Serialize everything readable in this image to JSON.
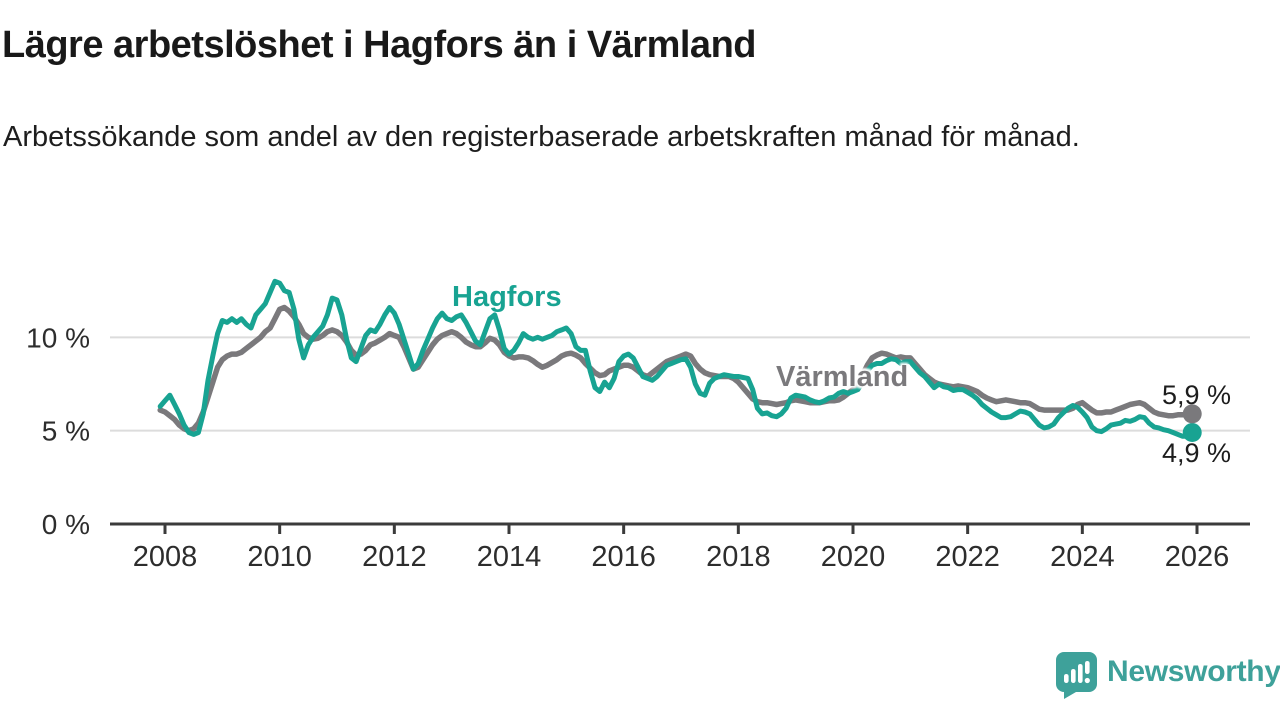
{
  "header": {
    "title": "Lägre arbetslöshet i Hagfors än i Värmland",
    "subtitle": "Arbetssökande som andel av den registerbaserade arbetskraften månad för månad."
  },
  "colors": {
    "hagfors_line": "#18a392",
    "varmland_line": "#7a797c",
    "axis": "#3b3b3b",
    "gridline": "#dcdcdc",
    "tick_label": "#2d2d2d",
    "text": "#1e1e1e",
    "brand_teal": "#3ea19a"
  },
  "chart_data": {
    "type": "line",
    "title": "Lägre arbetslöshet i Hagfors än i Värmland",
    "subtitle": "Arbetssökande som andel av den registerbaserade arbetskraften månad för månad.",
    "unit": "%",
    "x_start_year": 2007.9167,
    "x_step_years": 0.083333,
    "xlim": [
      2007.05,
      2026.95
    ],
    "ylim": [
      0,
      13.6
    ],
    "grid": "horizontal",
    "legend_position": "inline-labels",
    "x_ticks": [
      2008,
      2010,
      2012,
      2014,
      2016,
      2018,
      2020,
      2022,
      2024,
      2026
    ],
    "y_ticks": [
      {
        "value": 0,
        "label": "0 %"
      },
      {
        "value": 5,
        "label": "5 %"
      },
      {
        "value": 10,
        "label": "10 %"
      }
    ],
    "series": [
      {
        "name": "Hagfors",
        "key": "hagfors",
        "color": "#18a392",
        "end_label": "4,9 %",
        "end_value": 4.9,
        "values": [
          6.3,
          6.6,
          6.9,
          6.4,
          5.9,
          5.3,
          4.9,
          4.8,
          4.9,
          5.9,
          7.7,
          9.0,
          10.2,
          10.9,
          10.8,
          11.0,
          10.8,
          11.0,
          10.7,
          10.5,
          11.2,
          11.5,
          11.8,
          12.4,
          13.0,
          12.9,
          12.5,
          12.4,
          11.5,
          9.9,
          8.9,
          9.6,
          10.0,
          10.3,
          10.6,
          11.2,
          12.1,
          12.0,
          11.2,
          9.9,
          8.9,
          8.7,
          9.4,
          10.1,
          10.4,
          10.3,
          10.7,
          11.2,
          11.6,
          11.3,
          10.7,
          9.9,
          9.1,
          8.3,
          8.6,
          9.3,
          9.9,
          10.5,
          11.0,
          11.3,
          11.0,
          10.9,
          11.1,
          11.2,
          10.8,
          10.3,
          9.8,
          9.6,
          10.3,
          11.0,
          11.2,
          10.4,
          9.4,
          9.1,
          9.3,
          9.7,
          10.2,
          10.0,
          9.9,
          10.0,
          9.9,
          10.0,
          10.1,
          10.3,
          10.4,
          10.5,
          10.2,
          9.5,
          9.3,
          9.3,
          8.2,
          7.3,
          7.1,
          7.6,
          7.3,
          7.8,
          8.7,
          9.0,
          9.1,
          8.9,
          8.4,
          7.9,
          7.8,
          7.7,
          7.9,
          8.2,
          8.5,
          8.6,
          8.7,
          8.8,
          8.85,
          8.4,
          7.5,
          7.0,
          6.9,
          7.55,
          7.8,
          7.9,
          8.0,
          7.95,
          7.9,
          7.9,
          7.85,
          7.8,
          7.2,
          6.2,
          5.9,
          5.95,
          5.8,
          5.75,
          5.9,
          6.2,
          6.75,
          6.9,
          6.85,
          6.8,
          6.65,
          6.55,
          6.5,
          6.6,
          6.75,
          6.8,
          7.0,
          7.1,
          7.0,
          7.1,
          7.2,
          7.6,
          8.2,
          8.5,
          8.6,
          8.6,
          8.75,
          8.85,
          8.8,
          8.6,
          8.7,
          8.7,
          8.4,
          8.1,
          7.9,
          7.6,
          7.3,
          7.5,
          7.35,
          7.3,
          7.15,
          7.2,
          7.2,
          7.05,
          6.9,
          6.7,
          6.4,
          6.2,
          6.0,
          5.85,
          5.7,
          5.7,
          5.75,
          5.9,
          6.05,
          6.0,
          5.9,
          5.6,
          5.3,
          5.15,
          5.2,
          5.35,
          5.7,
          5.95,
          6.2,
          6.35,
          6.25,
          6.0,
          5.7,
          5.2,
          5.0,
          4.95,
          5.1,
          5.3,
          5.35,
          5.4,
          5.55,
          5.5,
          5.6,
          5.75,
          5.7,
          5.4,
          5.2,
          5.15,
          5.05,
          5.0,
          4.9,
          4.8,
          4.7,
          4.7,
          4.9
        ]
      },
      {
        "name": "Värmland",
        "key": "varmland",
        "color": "#7a797c",
        "end_label": "5,9 %",
        "end_value": 5.9,
        "values": [
          6.1,
          6.0,
          5.8,
          5.6,
          5.3,
          5.1,
          5.0,
          5.1,
          5.4,
          6.0,
          6.8,
          7.6,
          8.4,
          8.8,
          9.0,
          9.1,
          9.1,
          9.2,
          9.4,
          9.6,
          9.8,
          10.0,
          10.3,
          10.5,
          11.0,
          11.5,
          11.6,
          11.4,
          11.1,
          10.7,
          10.2,
          10.0,
          9.9,
          9.95,
          10.1,
          10.3,
          10.4,
          10.3,
          10.1,
          9.75,
          9.3,
          9.05,
          9.1,
          9.3,
          9.6,
          9.7,
          9.85,
          10.0,
          10.2,
          10.1,
          10.0,
          9.5,
          8.9,
          8.3,
          8.4,
          8.8,
          9.2,
          9.6,
          9.9,
          10.1,
          10.2,
          10.3,
          10.2,
          10.0,
          9.75,
          9.6,
          9.5,
          9.5,
          9.7,
          9.95,
          9.85,
          9.6,
          9.2,
          9.0,
          8.9,
          8.95,
          8.95,
          8.9,
          8.75,
          8.55,
          8.4,
          8.5,
          8.65,
          8.8,
          9.0,
          9.1,
          9.15,
          9.05,
          8.9,
          8.6,
          8.35,
          8.1,
          7.95,
          8.0,
          8.2,
          8.3,
          8.4,
          8.5,
          8.5,
          8.4,
          8.2,
          8.0,
          7.9,
          8.1,
          8.3,
          8.5,
          8.7,
          8.8,
          8.9,
          9.0,
          9.1,
          9.0,
          8.6,
          8.3,
          8.1,
          8.0,
          7.95,
          7.9,
          7.9,
          7.9,
          7.8,
          7.6,
          7.3,
          7.0,
          6.7,
          6.55,
          6.5,
          6.5,
          6.45,
          6.4,
          6.45,
          6.5,
          6.6,
          6.65,
          6.6,
          6.55,
          6.5,
          6.5,
          6.5,
          6.55,
          6.6,
          6.6,
          6.65,
          6.8,
          7.0,
          7.2,
          7.4,
          8.0,
          8.5,
          8.9,
          9.05,
          9.15,
          9.1,
          9.0,
          8.9,
          8.95,
          8.9,
          8.9,
          8.6,
          8.3,
          8.0,
          7.8,
          7.6,
          7.5,
          7.45,
          7.4,
          7.35,
          7.4,
          7.35,
          7.3,
          7.2,
          7.1,
          6.9,
          6.75,
          6.65,
          6.55,
          6.6,
          6.65,
          6.6,
          6.55,
          6.5,
          6.5,
          6.45,
          6.3,
          6.15,
          6.1,
          6.1,
          6.1,
          6.1,
          6.1,
          6.1,
          6.2,
          6.4,
          6.5,
          6.3,
          6.1,
          5.95,
          5.95,
          6.0,
          6.0,
          6.1,
          6.2,
          6.3,
          6.4,
          6.45,
          6.5,
          6.4,
          6.2,
          6.0,
          5.9,
          5.85,
          5.8,
          5.8,
          5.85,
          5.85,
          5.9,
          5.9
        ]
      }
    ]
  },
  "footer": {
    "brand": "Newsworthy"
  }
}
